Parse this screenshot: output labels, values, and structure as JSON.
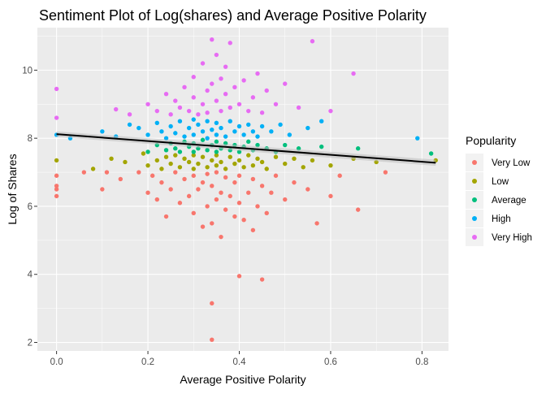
{
  "chart_data": {
    "type": "scatter",
    "title": "Sentiment Plot of Log(shares) and Average Positive Polarity",
    "xlabel": "Average Positive Polarity",
    "ylabel": "Log of Shares",
    "xlim": [
      -0.042,
      0.858
    ],
    "ylim": [
      1.75,
      11.25
    ],
    "x_ticks": [
      0.0,
      0.2,
      0.4,
      0.6,
      0.8
    ],
    "x_tick_labels": [
      "0.0",
      "0.2",
      "0.4",
      "0.6",
      "0.8"
    ],
    "y_ticks": [
      2,
      4,
      6,
      8,
      10
    ],
    "y_tick_labels": [
      "2",
      "4",
      "6",
      "8",
      "10"
    ],
    "grid": true,
    "legend": {
      "title": "Popularity",
      "placement": "right",
      "entries": [
        "Very Low",
        "Low",
        "Average",
        "High",
        "Very High"
      ]
    },
    "colors": {
      "Very Low": "#F8766D",
      "Low": "#A3A500",
      "Average": "#00BF7D",
      "High": "#00B0F6",
      "Very High": "#E76BF3",
      "fit_line": "#000000",
      "confidence_band": "#BDBDBD",
      "panel_bg": "#EBEBEB"
    },
    "trend_line": {
      "x": [
        0.0,
        0.83
      ],
      "y": [
        8.12,
        7.28
      ],
      "band_halfwidth": [
        0.08,
        0.09
      ]
    },
    "series": [
      {
        "name": "Very Low",
        "points": [
          [
            0.0,
            6.3
          ],
          [
            0.0,
            6.5
          ],
          [
            0.0,
            6.6
          ],
          [
            0.0,
            6.9
          ],
          [
            0.06,
            7.0
          ],
          [
            0.1,
            6.5
          ],
          [
            0.11,
            7.0
          ],
          [
            0.14,
            6.8
          ],
          [
            0.18,
            7.0
          ],
          [
            0.2,
            6.4
          ],
          [
            0.21,
            6.9
          ],
          [
            0.22,
            6.2
          ],
          [
            0.23,
            6.7
          ],
          [
            0.24,
            5.7
          ],
          [
            0.25,
            6.5
          ],
          [
            0.26,
            7.0
          ],
          [
            0.27,
            6.1
          ],
          [
            0.28,
            6.8
          ],
          [
            0.29,
            6.3
          ],
          [
            0.3,
            5.8
          ],
          [
            0.3,
            6.9
          ],
          [
            0.31,
            6.5
          ],
          [
            0.32,
            5.4
          ],
          [
            0.32,
            6.7
          ],
          [
            0.33,
            6.0
          ],
          [
            0.33,
            6.95
          ],
          [
            0.34,
            5.5
          ],
          [
            0.34,
            6.6
          ],
          [
            0.35,
            6.2
          ],
          [
            0.35,
            7.0
          ],
          [
            0.36,
            5.1
          ],
          [
            0.36,
            6.4
          ],
          [
            0.37,
            5.9
          ],
          [
            0.37,
            6.85
          ],
          [
            0.38,
            6.3
          ],
          [
            0.39,
            5.7
          ],
          [
            0.39,
            6.7
          ],
          [
            0.4,
            6.1
          ],
          [
            0.4,
            6.9
          ],
          [
            0.41,
            5.6
          ],
          [
            0.42,
            6.4
          ],
          [
            0.43,
            5.3
          ],
          [
            0.43,
            6.8
          ],
          [
            0.44,
            6.0
          ],
          [
            0.45,
            6.6
          ],
          [
            0.46,
            5.8
          ],
          [
            0.47,
            6.4
          ],
          [
            0.48,
            6.9
          ],
          [
            0.5,
            6.2
          ],
          [
            0.52,
            6.7
          ],
          [
            0.55,
            6.5
          ],
          [
            0.57,
            5.5
          ],
          [
            0.6,
            6.3
          ],
          [
            0.62,
            6.9
          ],
          [
            0.66,
            5.9
          ],
          [
            0.72,
            7.0
          ],
          [
            0.4,
            3.95
          ],
          [
            0.45,
            3.85
          ],
          [
            0.34,
            3.15
          ],
          [
            0.34,
            2.08
          ]
        ]
      },
      {
        "name": "Low",
        "points": [
          [
            0.0,
            7.35
          ],
          [
            0.08,
            7.1
          ],
          [
            0.12,
            7.4
          ],
          [
            0.15,
            7.3
          ],
          [
            0.19,
            7.55
          ],
          [
            0.2,
            7.2
          ],
          [
            0.22,
            7.35
          ],
          [
            0.23,
            7.1
          ],
          [
            0.24,
            7.45
          ],
          [
            0.25,
            7.25
          ],
          [
            0.26,
            7.5
          ],
          [
            0.27,
            7.15
          ],
          [
            0.28,
            7.4
          ],
          [
            0.29,
            7.3
          ],
          [
            0.3,
            7.1
          ],
          [
            0.3,
            7.5
          ],
          [
            0.31,
            7.25
          ],
          [
            0.32,
            7.45
          ],
          [
            0.33,
            7.15
          ],
          [
            0.34,
            7.35
          ],
          [
            0.35,
            7.2
          ],
          [
            0.35,
            7.5
          ],
          [
            0.36,
            7.3
          ],
          [
            0.37,
            7.1
          ],
          [
            0.38,
            7.45
          ],
          [
            0.39,
            7.25
          ],
          [
            0.4,
            7.35
          ],
          [
            0.41,
            7.15
          ],
          [
            0.42,
            7.5
          ],
          [
            0.43,
            7.2
          ],
          [
            0.44,
            7.4
          ],
          [
            0.45,
            7.3
          ],
          [
            0.46,
            7.1
          ],
          [
            0.48,
            7.45
          ],
          [
            0.5,
            7.25
          ],
          [
            0.52,
            7.4
          ],
          [
            0.54,
            7.15
          ],
          [
            0.56,
            7.35
          ],
          [
            0.6,
            7.2
          ],
          [
            0.65,
            7.4
          ],
          [
            0.7,
            7.3
          ],
          [
            0.83,
            7.35
          ]
        ]
      },
      {
        "name": "Average",
        "points": [
          [
            0.2,
            7.6
          ],
          [
            0.22,
            7.8
          ],
          [
            0.24,
            7.65
          ],
          [
            0.25,
            7.85
          ],
          [
            0.26,
            7.7
          ],
          [
            0.27,
            7.6
          ],
          [
            0.28,
            7.9
          ],
          [
            0.29,
            7.75
          ],
          [
            0.3,
            7.6
          ],
          [
            0.3,
            7.85
          ],
          [
            0.31,
            7.7
          ],
          [
            0.32,
            7.95
          ],
          [
            0.33,
            7.65
          ],
          [
            0.34,
            7.8
          ],
          [
            0.35,
            7.6
          ],
          [
            0.35,
            7.9
          ],
          [
            0.36,
            7.7
          ],
          [
            0.37,
            7.85
          ],
          [
            0.38,
            7.65
          ],
          [
            0.39,
            7.8
          ],
          [
            0.4,
            7.6
          ],
          [
            0.41,
            7.75
          ],
          [
            0.42,
            7.9
          ],
          [
            0.43,
            7.65
          ],
          [
            0.44,
            7.8
          ],
          [
            0.46,
            7.7
          ],
          [
            0.48,
            7.6
          ],
          [
            0.5,
            7.8
          ],
          [
            0.53,
            7.7
          ],
          [
            0.58,
            7.75
          ],
          [
            0.66,
            7.7
          ],
          [
            0.82,
            7.55
          ]
        ]
      },
      {
        "name": "High",
        "points": [
          [
            0.0,
            8.1
          ],
          [
            0.03,
            8.0
          ],
          [
            0.1,
            8.2
          ],
          [
            0.13,
            8.05
          ],
          [
            0.16,
            8.4
          ],
          [
            0.18,
            8.3
          ],
          [
            0.2,
            8.1
          ],
          [
            0.22,
            8.45
          ],
          [
            0.23,
            8.2
          ],
          [
            0.24,
            8.0
          ],
          [
            0.25,
            8.35
          ],
          [
            0.26,
            8.15
          ],
          [
            0.27,
            8.5
          ],
          [
            0.28,
            8.05
          ],
          [
            0.29,
            8.3
          ],
          [
            0.3,
            8.55
          ],
          [
            0.3,
            8.1
          ],
          [
            0.31,
            8.4
          ],
          [
            0.32,
            8.2
          ],
          [
            0.33,
            8.0
          ],
          [
            0.33,
            8.5
          ],
          [
            0.34,
            8.25
          ],
          [
            0.35,
            8.1
          ],
          [
            0.35,
            8.45
          ],
          [
            0.36,
            8.3
          ],
          [
            0.37,
            8.05
          ],
          [
            0.38,
            8.5
          ],
          [
            0.39,
            8.2
          ],
          [
            0.4,
            8.35
          ],
          [
            0.41,
            8.1
          ],
          [
            0.42,
            8.4
          ],
          [
            0.43,
            8.2
          ],
          [
            0.44,
            8.05
          ],
          [
            0.45,
            8.35
          ],
          [
            0.47,
            8.2
          ],
          [
            0.49,
            8.4
          ],
          [
            0.51,
            8.1
          ],
          [
            0.55,
            8.3
          ],
          [
            0.58,
            8.5
          ],
          [
            0.79,
            8.0
          ]
        ]
      },
      {
        "name": "Very High",
        "points": [
          [
            0.0,
            9.45
          ],
          [
            0.0,
            8.6
          ],
          [
            0.13,
            8.85
          ],
          [
            0.16,
            8.7
          ],
          [
            0.2,
            9.0
          ],
          [
            0.22,
            8.8
          ],
          [
            0.24,
            9.3
          ],
          [
            0.25,
            8.7
          ],
          [
            0.26,
            9.1
          ],
          [
            0.27,
            8.9
          ],
          [
            0.28,
            9.5
          ],
          [
            0.29,
            8.8
          ],
          [
            0.3,
            9.2
          ],
          [
            0.3,
            9.8
          ],
          [
            0.31,
            8.7
          ],
          [
            0.32,
            9.0
          ],
          [
            0.32,
            10.2
          ],
          [
            0.33,
            9.4
          ],
          [
            0.33,
            8.75
          ],
          [
            0.34,
            9.6
          ],
          [
            0.34,
            10.9
          ],
          [
            0.35,
            9.1
          ],
          [
            0.35,
            10.45
          ],
          [
            0.36,
            8.8
          ],
          [
            0.36,
            9.75
          ],
          [
            0.37,
            10.1
          ],
          [
            0.37,
            9.3
          ],
          [
            0.38,
            10.8
          ],
          [
            0.38,
            8.9
          ],
          [
            0.39,
            9.5
          ],
          [
            0.4,
            9.0
          ],
          [
            0.41,
            9.7
          ],
          [
            0.42,
            8.8
          ],
          [
            0.43,
            9.2
          ],
          [
            0.44,
            9.9
          ],
          [
            0.45,
            8.75
          ],
          [
            0.46,
            9.4
          ],
          [
            0.48,
            9.0
          ],
          [
            0.5,
            9.6
          ],
          [
            0.53,
            8.9
          ],
          [
            0.56,
            10.85
          ],
          [
            0.6,
            8.8
          ],
          [
            0.65,
            9.9
          ]
        ]
      }
    ]
  }
}
